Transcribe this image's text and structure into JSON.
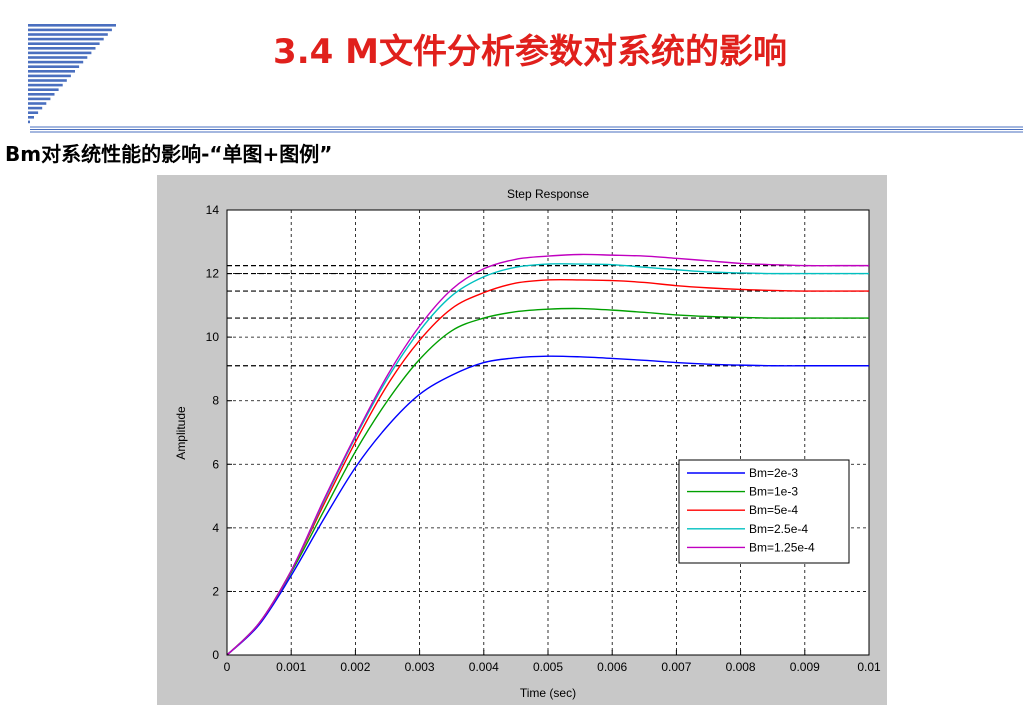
{
  "slide": {
    "title": "3.4 M文件分析参数对系统的影响",
    "section_heading": "Bm对系统性能的影响-“单图+图例”"
  },
  "colors": {
    "title_red": "#e0201c",
    "logo_blue": "#4a6fbf",
    "figure_bg": "#c8c8c8",
    "series": [
      "#0000ff",
      "#00a000",
      "#ff0000",
      "#00c0c0",
      "#c000c0"
    ]
  },
  "chart_data": {
    "type": "line",
    "title": "Step Response",
    "xlabel": "Time (sec)",
    "ylabel": "Amplitude",
    "xlim": [
      0,
      0.01
    ],
    "ylim": [
      0,
      14
    ],
    "xticks": [
      "0",
      "0.001",
      "0.002",
      "0.003",
      "0.004",
      "0.005",
      "0.006",
      "0.007",
      "0.008",
      "0.009",
      "0.01"
    ],
    "yticks": [
      "0",
      "2",
      "4",
      "6",
      "8",
      "10",
      "12",
      "14"
    ],
    "grid": true,
    "legend_position": "bottom-right",
    "x": [
      0,
      0.0005,
      0.001,
      0.0015,
      0.002,
      0.0025,
      0.003,
      0.0035,
      0.004,
      0.0045,
      0.005,
      0.0055,
      0.006,
      0.0065,
      0.007,
      0.0075,
      0.008,
      0.0085,
      0.009,
      0.0095,
      0.01
    ],
    "series": [
      {
        "name": "Bm=2e-3",
        "final_value": 9.1,
        "values": [
          0,
          0.95,
          2.5,
          4.25,
          5.9,
          7.2,
          8.2,
          8.8,
          9.2,
          9.35,
          9.4,
          9.38,
          9.33,
          9.27,
          9.2,
          9.15,
          9.12,
          9.1,
          9.1,
          9.1,
          9.1
        ]
      },
      {
        "name": "Bm=1e-3",
        "final_value": 10.6,
        "values": [
          0,
          1.0,
          2.6,
          4.5,
          6.4,
          8.0,
          9.3,
          10.2,
          10.6,
          10.8,
          10.88,
          10.9,
          10.85,
          10.78,
          10.7,
          10.65,
          10.62,
          10.6,
          10.6,
          10.6,
          10.6
        ]
      },
      {
        "name": "Bm=5e-4",
        "final_value": 11.45,
        "values": [
          0,
          1.0,
          2.65,
          4.7,
          6.7,
          8.5,
          9.9,
          10.9,
          11.4,
          11.7,
          11.8,
          11.8,
          11.78,
          11.72,
          11.62,
          11.55,
          11.5,
          11.47,
          11.45,
          11.45,
          11.45
        ]
      },
      {
        "name": "Bm=2.5e-4",
        "final_value": 12.0,
        "values": [
          0,
          1.0,
          2.65,
          4.8,
          6.85,
          8.7,
          10.2,
          11.3,
          11.9,
          12.2,
          12.3,
          12.3,
          12.28,
          12.2,
          12.12,
          12.05,
          12.02,
          12.0,
          12.0,
          12.0,
          12.0
        ]
      },
      {
        "name": "Bm=1.25e-4",
        "final_value": 12.25,
        "values": [
          0,
          1.0,
          2.65,
          4.85,
          6.9,
          8.8,
          10.35,
          11.5,
          12.15,
          12.45,
          12.55,
          12.6,
          12.58,
          12.55,
          12.48,
          12.4,
          12.32,
          12.28,
          12.25,
          12.25,
          12.25
        ]
      }
    ]
  }
}
